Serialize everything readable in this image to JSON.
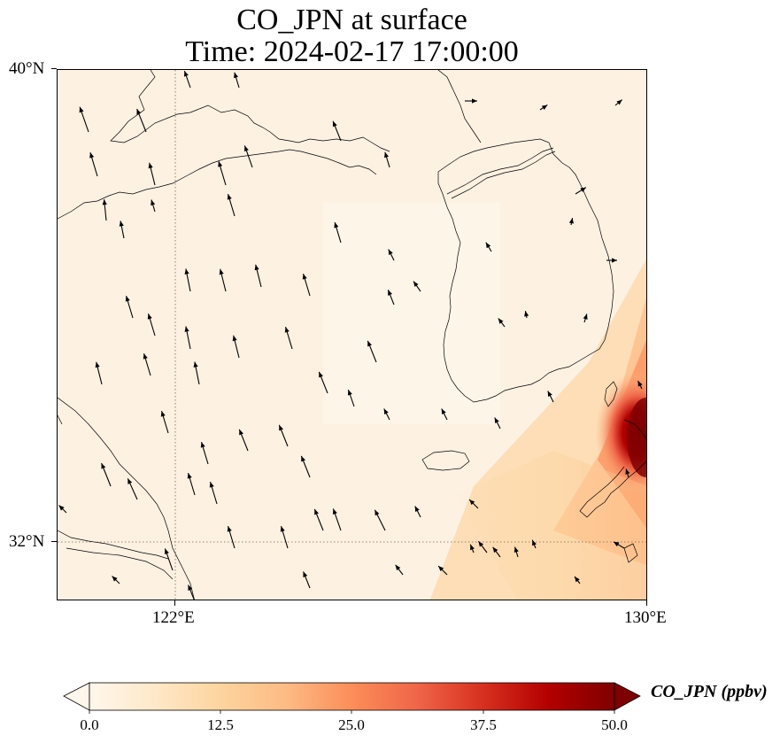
{
  "figure": {
    "title_line1": "CO_JPN at surface",
    "title_line2": "Time: 2024-02-17 17:00:00"
  },
  "map": {
    "variable": "CO_JPN",
    "extent_lon": [
      118,
      130
    ],
    "extent_lat": [
      31,
      40
    ],
    "lon_ticks": [
      {
        "value": 122,
        "label": "122°E"
      },
      {
        "value": 130,
        "label": "130°E"
      }
    ],
    "lat_ticks": [
      {
        "value": 40,
        "label": "40°N"
      },
      {
        "value": 32,
        "label": "32°N"
      }
    ],
    "gridline_style": "dotted",
    "background_color": "#fdf1e2",
    "coastline_color": "#000000",
    "wind_vectors": "black arrows, predominantly pointing north-northwest over the Yellow Sea and eastern China; pointing northeast to east near Korea and the north-east of the domain",
    "high_concentration_region": "near Kyushu / Tsushima Strait, south-east corner"
  },
  "colorbar": {
    "title": "CO_JPN (ppbv)",
    "min": 0.0,
    "max": 50.0,
    "ticks": [
      "0.0",
      "12.5",
      "25.0",
      "37.5",
      "50.0"
    ],
    "colormap": "OrRd",
    "extend": "both",
    "colors": [
      "#fff7ec",
      "#fee8c8",
      "#fdd49e",
      "#fdbb84",
      "#fc8d59",
      "#ef6548",
      "#d7301f",
      "#b30000",
      "#7f0000"
    ]
  }
}
